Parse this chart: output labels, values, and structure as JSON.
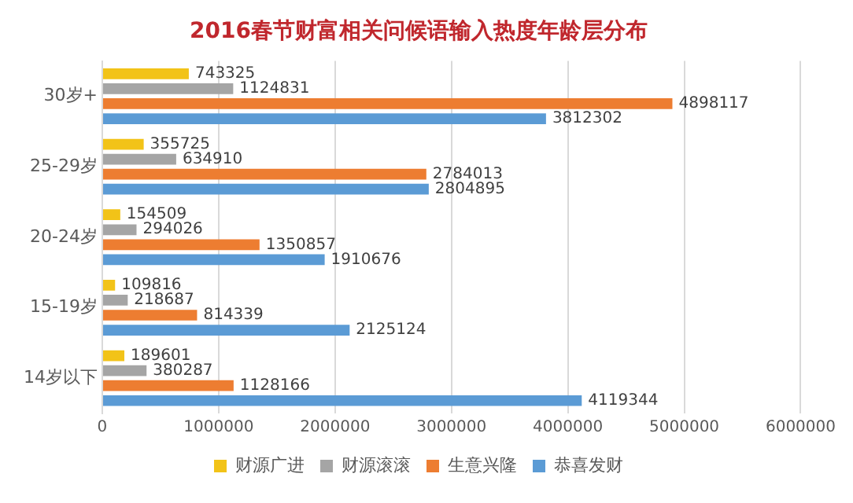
{
  "chart_data": {
    "type": "bar",
    "orientation": "horizontal",
    "title": "2016春节财富相关问候语输入热度年龄层分布",
    "categories": [
      "30岁+",
      "25-29岁",
      "20-24岁",
      "15-19岁",
      "14岁以下"
    ],
    "series": [
      {
        "name": "财源广进",
        "color": "#f2c318",
        "values": [
          743325,
          355725,
          154509,
          109816,
          189601
        ]
      },
      {
        "name": "财源滚滚",
        "color": "#a5a5a5",
        "values": [
          1124831,
          634910,
          294026,
          218687,
          380287
        ]
      },
      {
        "name": "生意兴隆",
        "color": "#ed7d31",
        "values": [
          4898117,
          2784013,
          1350857,
          814339,
          1128166
        ]
      },
      {
        "name": "恭喜发财",
        "color": "#5b9bd5",
        "values": [
          3812302,
          2804895,
          1910676,
          2125124,
          4119344
        ]
      }
    ],
    "xlim": [
      0,
      6000000
    ],
    "xticks": [
      0,
      1000000,
      2000000,
      3000000,
      4000000,
      5000000,
      6000000
    ],
    "grid": "x",
    "legend": "bottom",
    "data_labels": true
  }
}
